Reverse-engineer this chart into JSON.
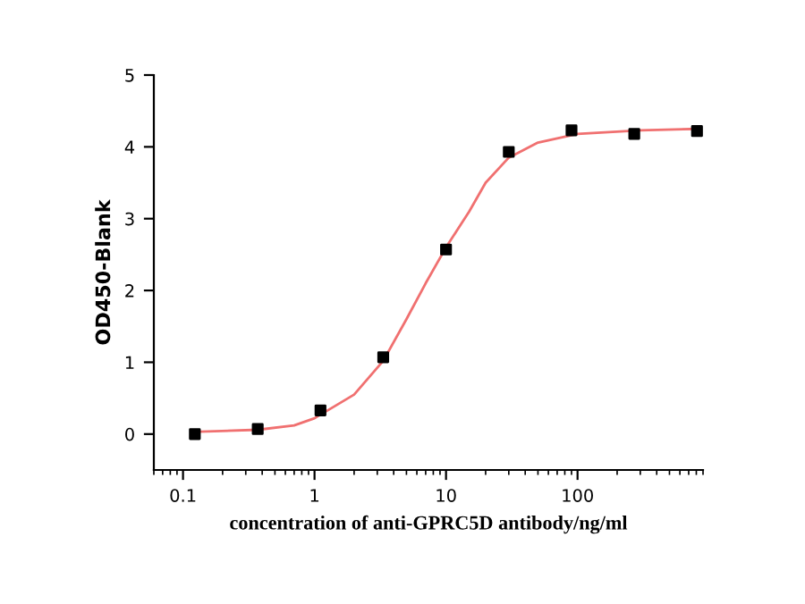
{
  "chart_data": {
    "type": "scatter",
    "xlabel": "concentration of anti-GPRC5D antibody/ng/ml",
    "ylabel": "OD450-Blank",
    "log": "x",
    "xlim": [
      0.06,
      900
    ],
    "xticks": [
      {
        "value": 0.1,
        "label": "0.1"
      },
      1,
      10,
      100
    ],
    "ylim": [
      -0.5,
      5
    ],
    "yticks": [
      0,
      1,
      2,
      3,
      4,
      5
    ],
    "grid": false,
    "legend": false,
    "series": [
      {
        "marker": "square",
        "color": "#000000",
        "x": [
          0.123,
          0.37,
          1.11,
          3.33,
          10,
          30,
          90,
          270,
          810
        ],
        "values": [
          0.0,
          0.07,
          0.33,
          1.07,
          2.57,
          3.93,
          4.23,
          4.18,
          4.22
        ]
      },
      {
        "type": "line",
        "marker": "none",
        "color": "#f07070",
        "line_style": "solid",
        "x": [
          0.12,
          0.37,
          0.7,
          1.0,
          2,
          3.33,
          5,
          7,
          10,
          15,
          20,
          30,
          50,
          100,
          300,
          810
        ],
        "values": [
          0.03,
          0.06,
          0.12,
          0.22,
          0.55,
          1.02,
          1.6,
          2.1,
          2.6,
          3.1,
          3.5,
          3.85,
          4.06,
          4.18,
          4.23,
          4.25
        ]
      }
    ]
  }
}
